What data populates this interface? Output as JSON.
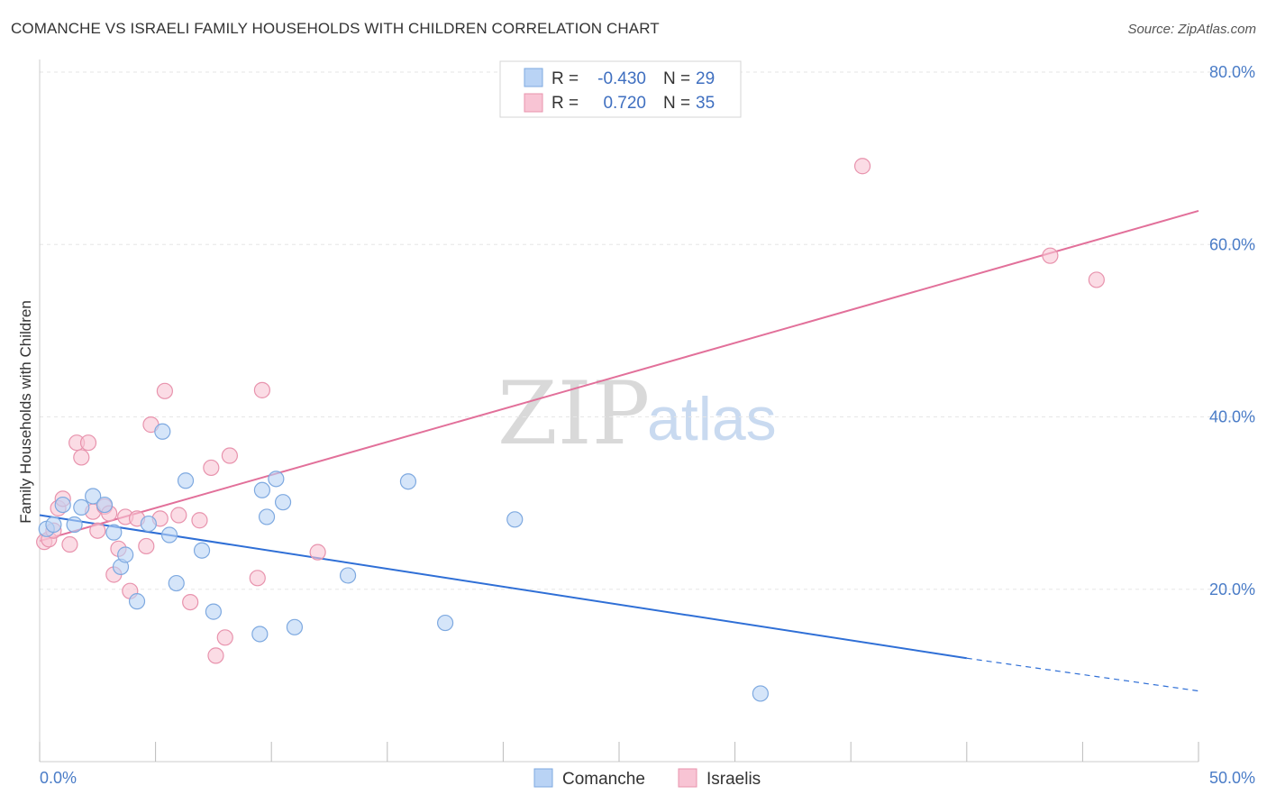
{
  "title": "COMANCHE VS ISRAELI FAMILY HOUSEHOLDS WITH CHILDREN CORRELATION CHART",
  "source": "Source: ZipAtlas.com",
  "watermark": {
    "zip": "ZIP",
    "atlas": "atlas"
  },
  "colors": {
    "comanche_fill": "#b9d3f5",
    "comanche_stroke": "#7ea9e0",
    "comanche_line": "#2f6fd6",
    "israelis_fill": "#f8c4d4",
    "israelis_stroke": "#e893ad",
    "israelis_line": "#e2709a",
    "tick_label": "#4a7cc7"
  },
  "legend": {
    "rows": [
      {
        "r_label": "R =",
        "r_value": "-0.430",
        "n_label": "N =",
        "n_value": "29"
      },
      {
        "r_label": "R =",
        "r_value": "0.720",
        "n_label": "N =",
        "n_value": "35"
      }
    ]
  },
  "bottom_legend": [
    "Comanche",
    "Israelis"
  ],
  "chart_data": {
    "type": "scatter",
    "title": "COMANCHE VS ISRAELI FAMILY HOUSEHOLDS WITH CHILDREN CORRELATION CHART",
    "xlabel": "",
    "ylabel": "Family Households with Children",
    "xlim": [
      0,
      50
    ],
    "ylim": [
      0,
      80
    ],
    "x_tick_labels": [
      "0.0%",
      "50.0%"
    ],
    "y_ticks": [
      20,
      40,
      60,
      80
    ],
    "y_tick_labels": [
      "20.0%",
      "40.0%",
      "60.0%",
      "80.0%"
    ],
    "grid": true,
    "series": [
      {
        "name": "Comanche",
        "r": -0.43,
        "n": 29,
        "trend": {
          "x0": 0,
          "y0": 28.6,
          "x1": 40,
          "y1": 12.0,
          "dashed_to_x": 50,
          "dashed_to_y": 8.2
        },
        "points": [
          [
            0.3,
            27.0
          ],
          [
            0.6,
            27.5
          ],
          [
            1.0,
            29.8
          ],
          [
            1.5,
            27.5
          ],
          [
            1.8,
            29.5
          ],
          [
            2.3,
            30.8
          ],
          [
            2.8,
            29.8
          ],
          [
            3.2,
            26.6
          ],
          [
            3.5,
            22.6
          ],
          [
            3.7,
            24.0
          ],
          [
            4.2,
            18.6
          ],
          [
            4.7,
            27.6
          ],
          [
            5.3,
            38.3
          ],
          [
            5.6,
            26.3
          ],
          [
            5.9,
            20.7
          ],
          [
            6.3,
            32.6
          ],
          [
            7.0,
            24.5
          ],
          [
            7.5,
            17.4
          ],
          [
            9.5,
            14.8
          ],
          [
            9.6,
            31.5
          ],
          [
            9.8,
            28.4
          ],
          [
            10.2,
            32.8
          ],
          [
            10.5,
            30.1
          ],
          [
            11.0,
            15.6
          ],
          [
            13.3,
            21.6
          ],
          [
            15.9,
            32.5
          ],
          [
            17.5,
            16.1
          ],
          [
            20.5,
            28.1
          ],
          [
            31.1,
            7.9
          ]
        ]
      },
      {
        "name": "Israelis",
        "r": 0.72,
        "n": 35,
        "trend": {
          "x0": 0,
          "y0": 25.6,
          "x1": 50,
          "y1": 63.9
        },
        "points": [
          [
            0.2,
            25.5
          ],
          [
            0.4,
            25.8
          ],
          [
            0.6,
            26.8
          ],
          [
            0.8,
            29.4
          ],
          [
            1.0,
            30.5
          ],
          [
            1.3,
            25.2
          ],
          [
            1.6,
            37.0
          ],
          [
            1.8,
            35.3
          ],
          [
            2.1,
            37.0
          ],
          [
            2.3,
            29.0
          ],
          [
            2.5,
            26.8
          ],
          [
            2.8,
            29.6
          ],
          [
            3.0,
            28.8
          ],
          [
            3.2,
            21.7
          ],
          [
            3.4,
            24.7
          ],
          [
            3.7,
            28.4
          ],
          [
            3.9,
            19.8
          ],
          [
            4.2,
            28.2
          ],
          [
            4.6,
            25.0
          ],
          [
            4.8,
            39.1
          ],
          [
            5.2,
            28.2
          ],
          [
            5.4,
            43.0
          ],
          [
            6.0,
            28.6
          ],
          [
            6.5,
            18.5
          ],
          [
            6.9,
            28.0
          ],
          [
            7.4,
            34.1
          ],
          [
            7.6,
            12.3
          ],
          [
            8.0,
            14.4
          ],
          [
            8.2,
            35.5
          ],
          [
            9.4,
            21.3
          ],
          [
            9.6,
            43.1
          ],
          [
            12.0,
            24.3
          ],
          [
            35.5,
            69.1
          ],
          [
            43.6,
            58.7
          ],
          [
            45.6,
            55.9
          ]
        ]
      }
    ]
  }
}
